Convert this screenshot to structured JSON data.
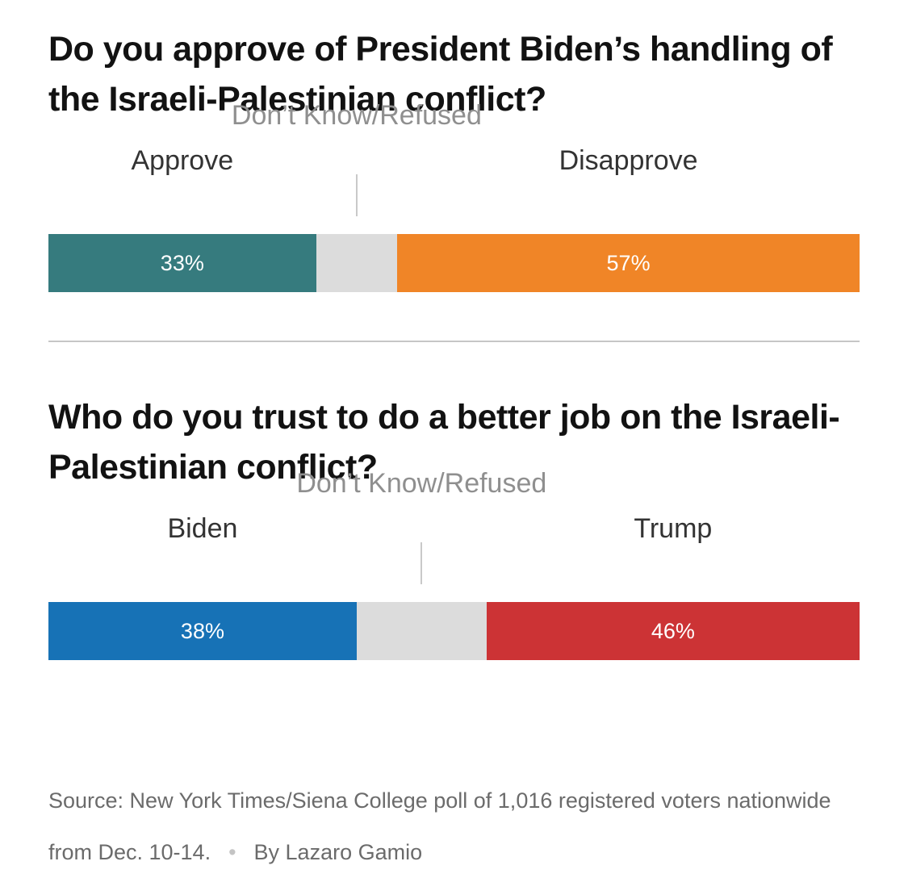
{
  "colors": {
    "approve": "#367b7e",
    "disapprove": "#f08527",
    "biden": "#1772b6",
    "trump": "#cc3335",
    "dont_know": "#dcdcdc"
  },
  "chart_data": [
    {
      "type": "bar",
      "orientation": "horizontal-stacked",
      "title": "Do you approve of President Biden’s handling of the Israeli-Palestinian conflict?",
      "xlim": [
        0,
        100
      ],
      "categories": [
        {
          "name": "Approve",
          "value": 33,
          "value_label": "33%",
          "color": "#367b7e"
        },
        {
          "name": "Don’t Know/Refused",
          "value": 10,
          "value_label": "",
          "color": "#dcdcdc"
        },
        {
          "name": "Disapprove",
          "value": 57,
          "value_label": "57%",
          "color": "#f08527"
        }
      ]
    },
    {
      "type": "bar",
      "orientation": "horizontal-stacked",
      "title": "Who do you trust to do a better job on the Israeli-Palestinian conflict?",
      "xlim": [
        0,
        100
      ],
      "categories": [
        {
          "name": "Biden",
          "value": 38,
          "value_label": "38%",
          "color": "#1772b6"
        },
        {
          "name": "Don’t Know/Refused",
          "value": 16,
          "value_label": "",
          "color": "#dcdcdc"
        },
        {
          "name": "Trump",
          "value": 46,
          "value_label": "46%",
          "color": "#cc3335"
        }
      ]
    }
  ],
  "footer": {
    "source": "Source: New York Times/Siena College poll of 1,016 registered voters nationwide from Dec. 10-14.",
    "separator": "•",
    "byline": "By Lazaro Gamio"
  }
}
